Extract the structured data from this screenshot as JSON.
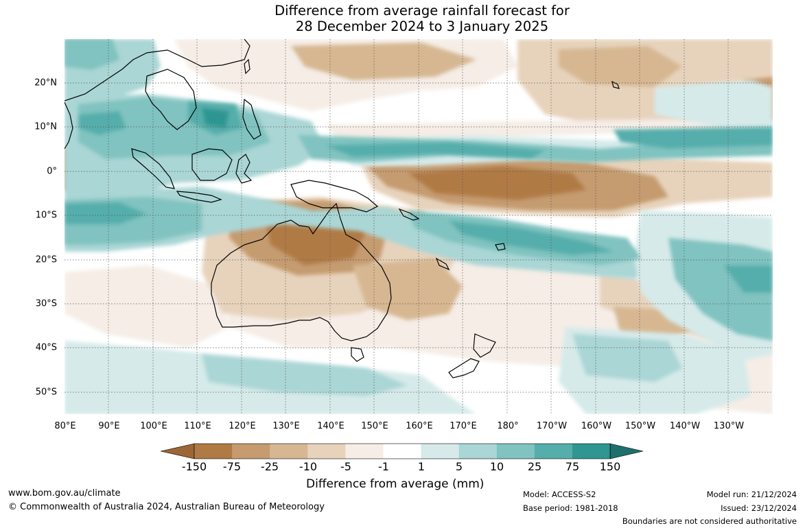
{
  "title": {
    "line1": "Difference from average rainfall forecast for",
    "line2": "28 December 2024 to 3 January 2025"
  },
  "map": {
    "lat_labels": [
      "20°N",
      "10°N",
      "0°",
      "10°S",
      "20°S",
      "30°S",
      "40°S",
      "50°S"
    ],
    "lon_labels": [
      "80°E",
      "90°E",
      "100°E",
      "110°E",
      "120°E",
      "130°E",
      "140°E",
      "150°E",
      "160°E",
      "170°E",
      "180°",
      "170°W",
      "160°W",
      "150°W",
      "140°W",
      "130°W"
    ]
  },
  "colorbar": {
    "ticks": [
      "-150",
      "-75",
      "-25",
      "-10",
      "-5",
      "-1",
      "1",
      "5",
      "10",
      "25",
      "75",
      "150"
    ],
    "colors": [
      "#9c6636",
      "#b07a45",
      "#c59b6f",
      "#d6b792",
      "#e7d3bc",
      "#f5ede6",
      "#ffffff",
      "#d6eaea",
      "#aad6d5",
      "#80c3c0",
      "#55aeab",
      "#2f9692",
      "#1f6f6c"
    ],
    "label": "Difference from average (mm)"
  },
  "footer": {
    "website": "www.bom.gov.au/climate",
    "copyright": "© Commonwealth of Australia 2024, Australian Bureau of Meteorology",
    "model": "Model: ACCESS-S2",
    "base_period": "Base period: 1981-2018",
    "model_run": "Model run: 21/12/2024",
    "issued": "Issued: 23/12/2024",
    "disclaimer": "Boundaries are not considered authoritative"
  }
}
